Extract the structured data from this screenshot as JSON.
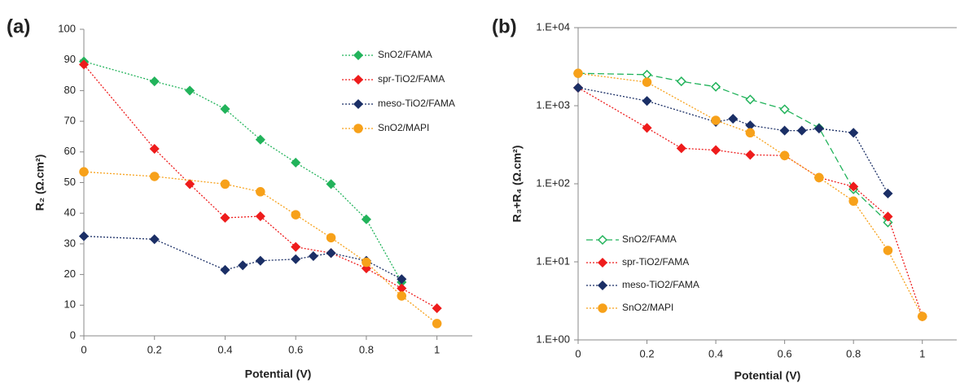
{
  "chart_data": [
    {
      "type": "line",
      "panel_label": "(a)",
      "xlabel": "Potential (V)",
      "ylabel": "R₂ (Ω.cm²)",
      "xlim": [
        0,
        1.1
      ],
      "xticks": [
        0,
        0.2,
        0.4,
        0.6,
        0.8,
        1
      ],
      "ylim": [
        0,
        100
      ],
      "yticks": [
        0,
        10,
        20,
        30,
        40,
        50,
        60,
        70,
        80,
        90,
        100
      ],
      "log_y": false,
      "grid": false,
      "legend": "upper right",
      "series": [
        {
          "name": "SnO2/FAMA",
          "color": "#22b35b",
          "marker": "diamond",
          "hollow": false,
          "linestyle": "dotted",
          "x": [
            0,
            0.2,
            0.3,
            0.4,
            0.5,
            0.6,
            0.7,
            0.8,
            0.9
          ],
          "values": [
            89.5,
            83,
            80,
            74,
            64,
            56.5,
            49.5,
            38,
            17.5
          ]
        },
        {
          "name": "spr-TiO2/FAMA",
          "color": "#ee1c1c",
          "marker": "diamond",
          "hollow": false,
          "linestyle": "dotted",
          "x": [
            0,
            0.2,
            0.3,
            0.4,
            0.5,
            0.6,
            0.7,
            0.8,
            0.9,
            1
          ],
          "values": [
            88.5,
            61,
            49.5,
            38.5,
            39,
            29,
            27,
            22,
            15.5,
            9
          ]
        },
        {
          "name": "meso-TiO2/FAMA",
          "color": "#1b2f66",
          "marker": "diamond",
          "hollow": false,
          "linestyle": "dotted",
          "x": [
            0,
            0.2,
            0.4,
            0.45,
            0.5,
            0.6,
            0.65,
            0.7,
            0.8,
            0.9
          ],
          "values": [
            32.5,
            31.5,
            21.5,
            23,
            24.5,
            25,
            26,
            27,
            24.5,
            18.5
          ]
        },
        {
          "name": "SnO2/MAPI",
          "color": "#f7a11a",
          "marker": "circle",
          "hollow": false,
          "linestyle": "dotted",
          "x": [
            0,
            0.2,
            0.4,
            0.5,
            0.6,
            0.7,
            0.8,
            0.9,
            1
          ],
          "values": [
            53.5,
            52,
            49.5,
            47,
            39.5,
            32,
            24,
            13,
            4
          ]
        }
      ]
    },
    {
      "type": "line",
      "panel_label": "(b)",
      "xlabel": "Potential (V)",
      "ylabel": "R₃+R₄ (Ω.cm²)",
      "xlim": [
        0,
        1.1
      ],
      "xticks": [
        0,
        0.2,
        0.4,
        0.6,
        0.8,
        1
      ],
      "ylim": [
        1,
        10000
      ],
      "yticks": [
        {
          "value": 1,
          "label": "1.E+00"
        },
        {
          "value": 10,
          "label": "1.E+01"
        },
        {
          "value": 100,
          "label": "1.E+02"
        },
        {
          "value": 1000,
          "label": "1.E+03"
        },
        {
          "value": 10000,
          "label": "1.E+04"
        }
      ],
      "log_y": true,
      "grid": false,
      "legend": "lower left",
      "series": [
        {
          "name": "SnO2/FAMA",
          "color": "#22b35b",
          "marker": "diamond",
          "hollow": true,
          "linestyle": "dashed",
          "x": [
            0,
            0.2,
            0.3,
            0.4,
            0.5,
            0.6,
            0.7,
            0.8,
            0.9
          ],
          "values": [
            2600,
            2500,
            2050,
            1750,
            1200,
            900,
            520,
            85,
            32
          ]
        },
        {
          "name": "spr-TiO2/FAMA",
          "color": "#ee1c1c",
          "marker": "diamond",
          "hollow": false,
          "linestyle": "dotted",
          "x": [
            0,
            0.2,
            0.3,
            0.4,
            0.5,
            0.6,
            0.7,
            0.8,
            0.9,
            1
          ],
          "values": [
            1700,
            520,
            285,
            270,
            235,
            230,
            120,
            92,
            38,
            2
          ]
        },
        {
          "name": "meso-TiO2/FAMA",
          "color": "#1b2f66",
          "marker": "diamond",
          "hollow": false,
          "linestyle": "dotted",
          "x": [
            0,
            0.2,
            0.4,
            0.45,
            0.5,
            0.6,
            0.65,
            0.7,
            0.8,
            0.9
          ],
          "values": [
            1700,
            1150,
            620,
            680,
            560,
            480,
            480,
            510,
            450,
            75
          ]
        },
        {
          "name": "SnO2/MAPI",
          "color": "#f7a11a",
          "marker": "circle",
          "hollow": false,
          "linestyle": "dotted",
          "x": [
            0,
            0.2,
            0.4,
            0.5,
            0.6,
            0.7,
            0.8,
            0.9,
            1
          ],
          "values": [
            2600,
            2000,
            650,
            450,
            230,
            120,
            60,
            14,
            2
          ]
        }
      ]
    }
  ]
}
